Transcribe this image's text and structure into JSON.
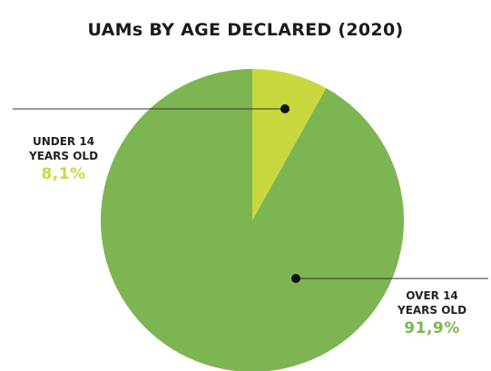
{
  "chart_data": {
    "type": "pie",
    "title": "UAMs BY AGE DECLARED (2020)",
    "slices": [
      {
        "label_line1": "UNDER 14",
        "label_line2": "YEARS OLD",
        "value_text": "8,1%",
        "value": 8.1,
        "color": "#c9d83f"
      },
      {
        "label_line1": "OVER 14",
        "label_line2": "YEARS OLD",
        "value_text": "91,9%",
        "value": 91.9,
        "color": "#7db552"
      }
    ],
    "legend": "none"
  }
}
